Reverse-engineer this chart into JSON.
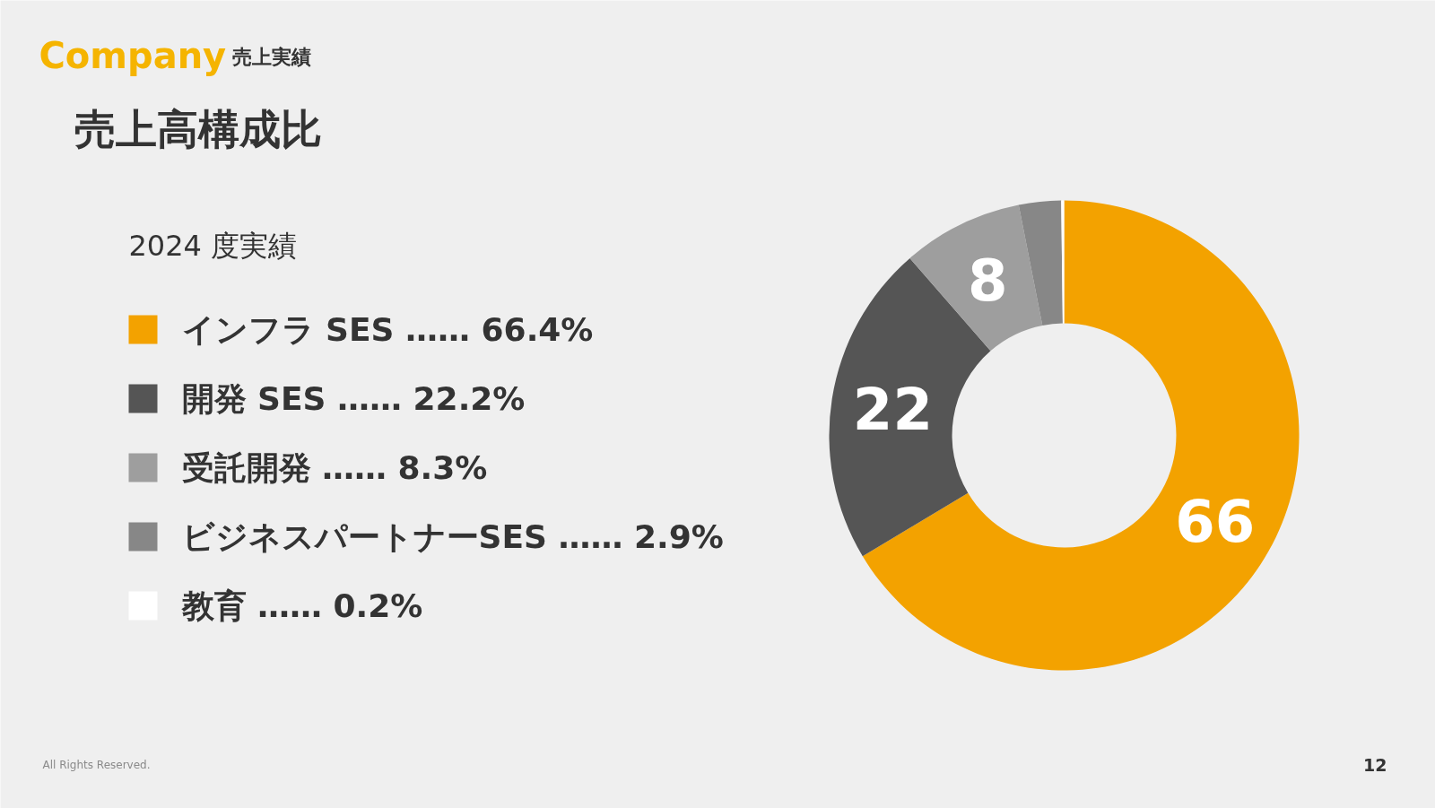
{
  "chart_data": {
    "type": "donut",
    "title": "売上高構成比",
    "subtitle": "2024 度実績",
    "categories": [
      "インフラ SES …… 66.4%",
      "開発 SES …… 22.2%",
      "受託開発 …… 8.3%",
      "ビジネスパートナーSES …… 2.9%",
      "教育 …… 0.2%"
    ],
    "values": [
      66.4,
      22.2,
      8.3,
      2.9,
      0.2
    ],
    "colors": [
      "#f3a200",
      "#555555",
      "#9e9e9e",
      "#878787",
      "#ffffff"
    ],
    "value_labels": [
      "66",
      "22",
      "8",
      null,
      null
    ],
    "legend": "left",
    "annotations": [
      "Company",
      "売上実績",
      "All Rights Reserved.",
      "12"
    ]
  }
}
